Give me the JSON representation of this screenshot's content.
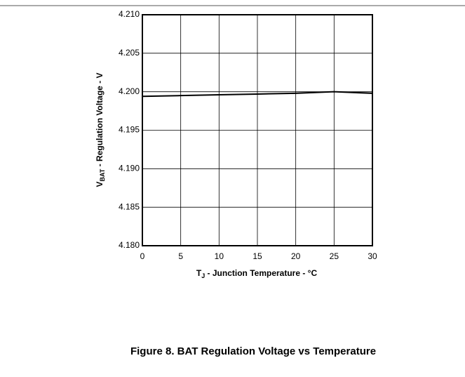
{
  "chart_data": {
    "type": "line",
    "x": [
      0,
      5,
      10,
      15,
      20,
      25,
      30
    ],
    "series": [
      {
        "name": "BAT Regulation Voltage",
        "color": "#000000",
        "values": [
          4.1994,
          4.1995,
          4.1996,
          4.1997,
          4.1998,
          4.2,
          4.1998
        ]
      }
    ],
    "xlim": [
      0,
      30
    ],
    "xticks": [
      0,
      5,
      10,
      15,
      20,
      25,
      30
    ],
    "ylim": [
      4.18,
      4.21
    ],
    "yticks": [
      {
        "value": 4.18,
        "label": "4.180"
      },
      {
        "value": 4.185,
        "label": "4.185"
      },
      {
        "value": 4.19,
        "label": "4.190"
      },
      {
        "value": 4.195,
        "label": "4.195"
      },
      {
        "value": 4.2,
        "label": "4.200"
      },
      {
        "value": 4.205,
        "label": "4.205"
      },
      {
        "value": 4.21,
        "label": "4.210"
      }
    ],
    "grid": true,
    "xlabel": {
      "main": "T",
      "sub": "J",
      "rest": " - Junction Temperature - °C"
    },
    "ylabel": {
      "main": "V",
      "sub": "BAT",
      "rest": " - Regulation Voltage - V"
    },
    "caption": "Figure 8. BAT Regulation Voltage vs Temperature"
  }
}
